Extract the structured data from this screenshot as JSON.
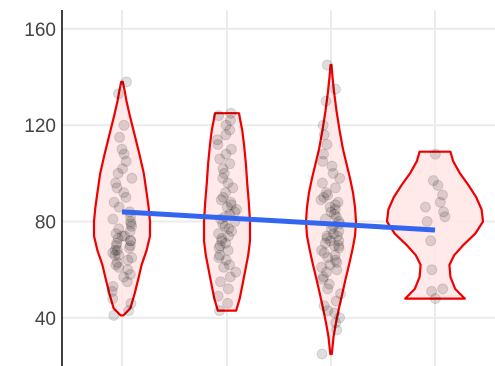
{
  "chart_data": {
    "type": "violin",
    "title": "",
    "xlabel": "",
    "ylabel": "",
    "x_tick_labels": [],
    "ylim": [
      20,
      172
    ],
    "y_ticks": [
      40,
      80,
      120,
      160
    ],
    "y_tick_labels": [
      "40",
      "80",
      "120",
      "160"
    ],
    "grid": true,
    "legend": "none",
    "colors": {
      "violin_stroke": "#ee0000",
      "violin_fill": "#ffe5e5",
      "point": "#000000",
      "trend_line": "#3366ee",
      "grid": "#ebebeb",
      "axis": "#000000"
    },
    "groups": [
      {
        "min": 41,
        "max": 138,
        "profile": [
          [
            41,
            0.05
          ],
          [
            44,
            0.3
          ],
          [
            50,
            0.45
          ],
          [
            56,
            0.58
          ],
          [
            62,
            0.7
          ],
          [
            68,
            0.88
          ],
          [
            74,
            1.0
          ],
          [
            80,
            1.0
          ],
          [
            86,
            0.95
          ],
          [
            92,
            0.88
          ],
          [
            100,
            0.78
          ],
          [
            108,
            0.62
          ],
          [
            116,
            0.45
          ],
          [
            124,
            0.28
          ],
          [
            130,
            0.16
          ],
          [
            134,
            0.1
          ],
          [
            138,
            0.03
          ]
        ],
        "points": [
          41,
          43,
          46,
          48,
          51,
          53,
          55,
          57,
          58,
          60,
          61,
          62,
          63,
          64,
          65,
          66,
          66,
          67,
          68,
          68,
          69,
          70,
          70,
          71,
          72,
          72,
          73,
          74,
          74,
          75,
          76,
          77,
          78,
          79,
          80,
          81,
          82,
          84,
          86,
          88,
          90,
          92,
          94,
          96,
          98,
          100,
          102,
          105,
          108,
          110,
          115,
          120,
          133,
          138
        ]
      },
      {
        "min": 43,
        "max": 125,
        "profile": [
          [
            43,
            0.4
          ],
          [
            48,
            0.55
          ],
          [
            54,
            0.68
          ],
          [
            60,
            0.8
          ],
          [
            66,
            0.92
          ],
          [
            72,
            1.0
          ],
          [
            80,
            1.0
          ],
          [
            88,
            0.95
          ],
          [
            96,
            0.88
          ],
          [
            104,
            0.82
          ],
          [
            112,
            0.74
          ],
          [
            118,
            0.66
          ],
          [
            122,
            0.58
          ],
          [
            125,
            0.52
          ]
        ],
        "points": [
          43,
          46,
          49,
          52,
          55,
          57,
          59,
          61,
          62,
          64,
          65,
          66,
          68,
          69,
          70,
          71,
          72,
          73,
          74,
          75,
          76,
          77,
          78,
          79,
          80,
          81,
          82,
          83,
          84,
          85,
          86,
          87,
          88,
          89,
          90,
          92,
          94,
          96,
          98,
          100,
          102,
          104,
          106,
          108,
          110,
          112,
          114,
          116,
          118,
          120,
          122,
          124,
          125
        ]
      },
      {
        "min": 25,
        "max": 145,
        "profile": [
          [
            25,
            0.03
          ],
          [
            32,
            0.1
          ],
          [
            38,
            0.2
          ],
          [
            44,
            0.32
          ],
          [
            50,
            0.45
          ],
          [
            56,
            0.58
          ],
          [
            62,
            0.72
          ],
          [
            68,
            0.85
          ],
          [
            74,
            0.96
          ],
          [
            80,
            1.0
          ],
          [
            86,
            0.96
          ],
          [
            92,
            0.88
          ],
          [
            98,
            0.76
          ],
          [
            104,
            0.62
          ],
          [
            110,
            0.48
          ],
          [
            118,
            0.34
          ],
          [
            126,
            0.22
          ],
          [
            134,
            0.12
          ],
          [
            140,
            0.06
          ],
          [
            145,
            0.02
          ]
        ],
        "points": [
          25,
          35,
          38,
          40,
          42,
          43,
          45,
          47,
          50,
          52,
          54,
          56,
          57,
          59,
          60,
          61,
          62,
          63,
          64,
          65,
          66,
          67,
          68,
          69,
          70,
          70,
          71,
          72,
          72,
          73,
          74,
          74,
          75,
          76,
          77,
          78,
          79,
          80,
          81,
          82,
          83,
          84,
          85,
          86,
          87,
          88,
          89,
          90,
          91,
          92,
          94,
          96,
          98,
          100,
          103,
          105,
          108,
          112,
          116,
          120,
          130,
          135,
          145
        ]
      },
      {
        "min": 48,
        "max": 109,
        "profile": [
          [
            48,
            0.62
          ],
          [
            52,
            0.42
          ],
          [
            57,
            0.32
          ],
          [
            62,
            0.3
          ],
          [
            66,
            0.4
          ],
          [
            70,
            0.58
          ],
          [
            75,
            0.84
          ],
          [
            80,
            1.0
          ],
          [
            85,
            0.97
          ],
          [
            90,
            0.86
          ],
          [
            95,
            0.7
          ],
          [
            100,
            0.52
          ],
          [
            105,
            0.38
          ],
          [
            109,
            0.32
          ]
        ],
        "points": [
          48,
          51,
          52,
          60,
          72,
          80,
          82,
          84,
          86,
          88,
          91,
          95,
          97,
          108
        ]
      }
    ],
    "trend_line": {
      "start_y": 84,
      "end_y": 76.5
    }
  }
}
